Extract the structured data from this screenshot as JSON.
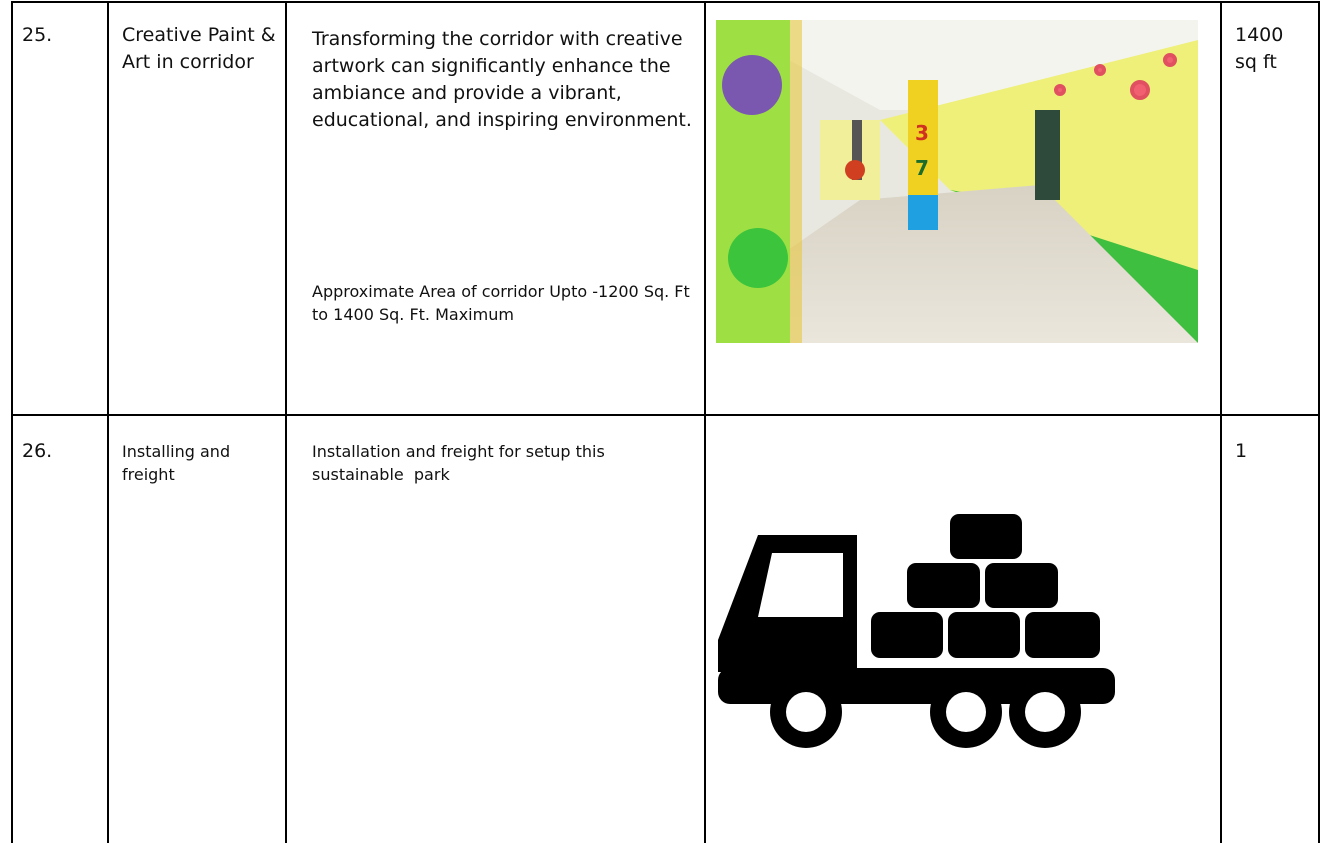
{
  "table": {
    "rows": [
      {
        "number": "25.",
        "item": "Creative Paint & Art in corridor",
        "description": "Transforming the corridor with creative artwork can significantly enhance the ambiance and provide a vibrant, educational, and inspiring environment.",
        "note": "Approximate Area of corridor Upto -1200 Sq. Ft to 1400 Sq. Ft. Maximum",
        "quantity": "1400 sq ft"
      },
      {
        "number": "26.",
        "item": "Installing and freight",
        "description": "Installation and freight for setup this sustainable  park",
        "quantity": "1"
      }
    ]
  }
}
